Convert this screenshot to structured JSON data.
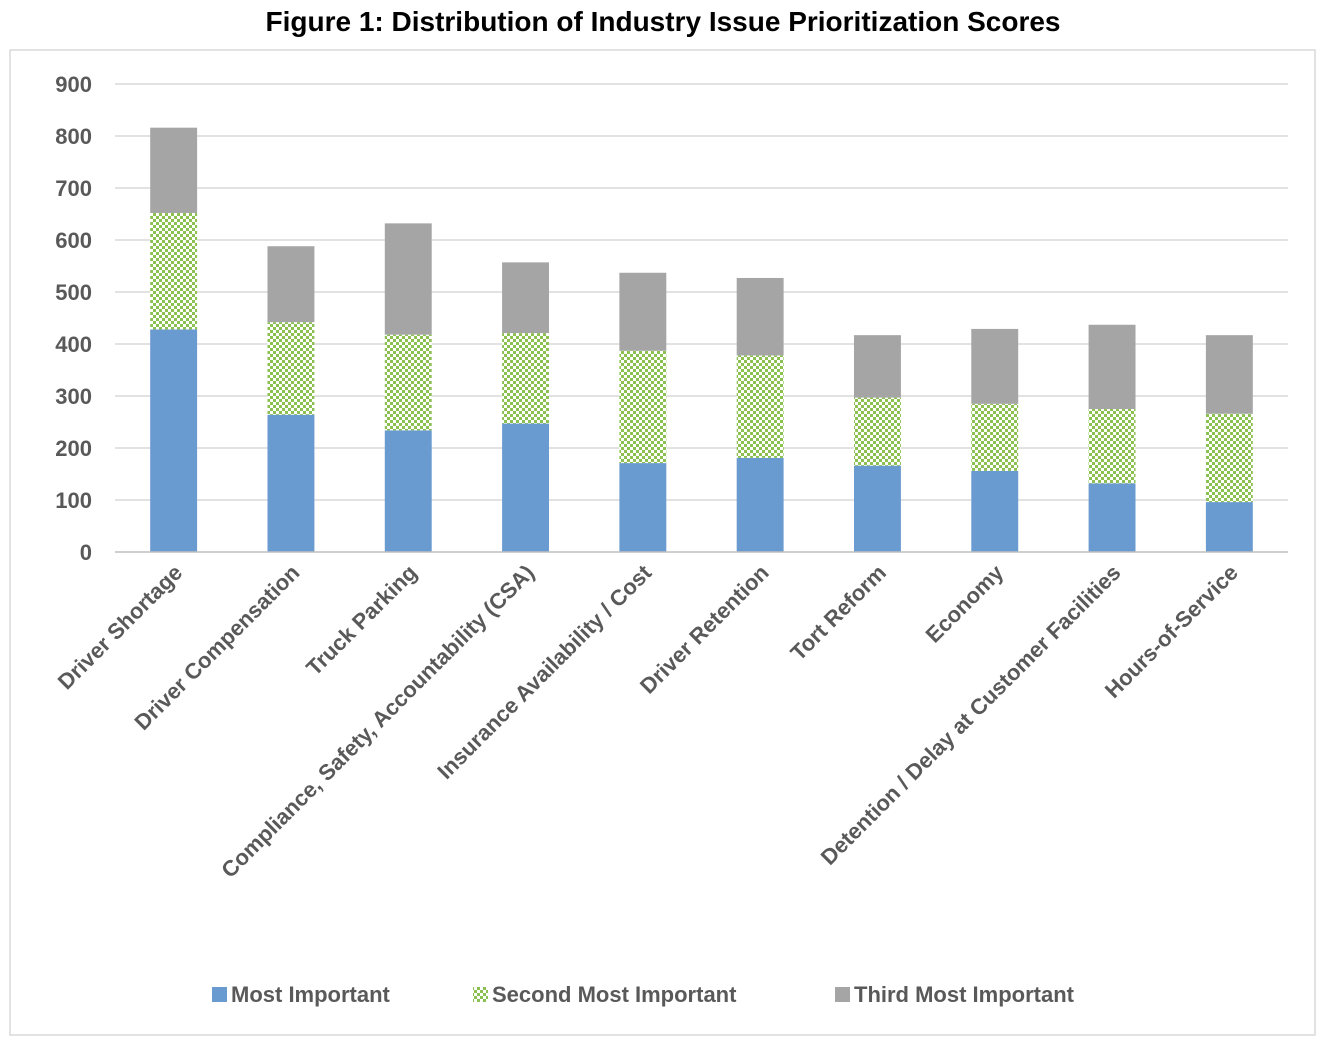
{
  "chart_data": {
    "type": "bar",
    "stacked": true,
    "title": "Figure 1: Distribution of Industry Issue Prioritization Scores",
    "xlabel": "",
    "ylabel": "",
    "ylim": [
      0,
      900
    ],
    "yticks": [
      0,
      100,
      200,
      300,
      400,
      500,
      600,
      700,
      800,
      900
    ],
    "grid": true,
    "legend_position": "bottom",
    "categories": [
      "Driver Shortage",
      "Driver Compensation",
      "Truck Parking",
      "Compliance, Safety, Accountability (CSA)",
      "Insurance Availability / Cost",
      "Driver Retention",
      "Tort Reform",
      "Economy",
      "Detention / Delay at Customer Facilities",
      "Hours-of-Service"
    ],
    "series": [
      {
        "name": "Most Important",
        "color": "#6a9bd0",
        "pattern": "solid",
        "values": [
          428,
          264,
          234,
          247,
          171,
          181,
          166,
          156,
          132,
          96
        ]
      },
      {
        "name": "Second Most Important",
        "color": "#8cc152",
        "pattern": "checker",
        "values": [
          224,
          178,
          184,
          174,
          216,
          197,
          131,
          129,
          143,
          170
        ]
      },
      {
        "name": "Third Most Important",
        "color": "#a5a5a5",
        "pattern": "solid",
        "values": [
          164,
          146,
          214,
          136,
          150,
          149,
          120,
          144,
          162,
          151
        ]
      }
    ]
  }
}
